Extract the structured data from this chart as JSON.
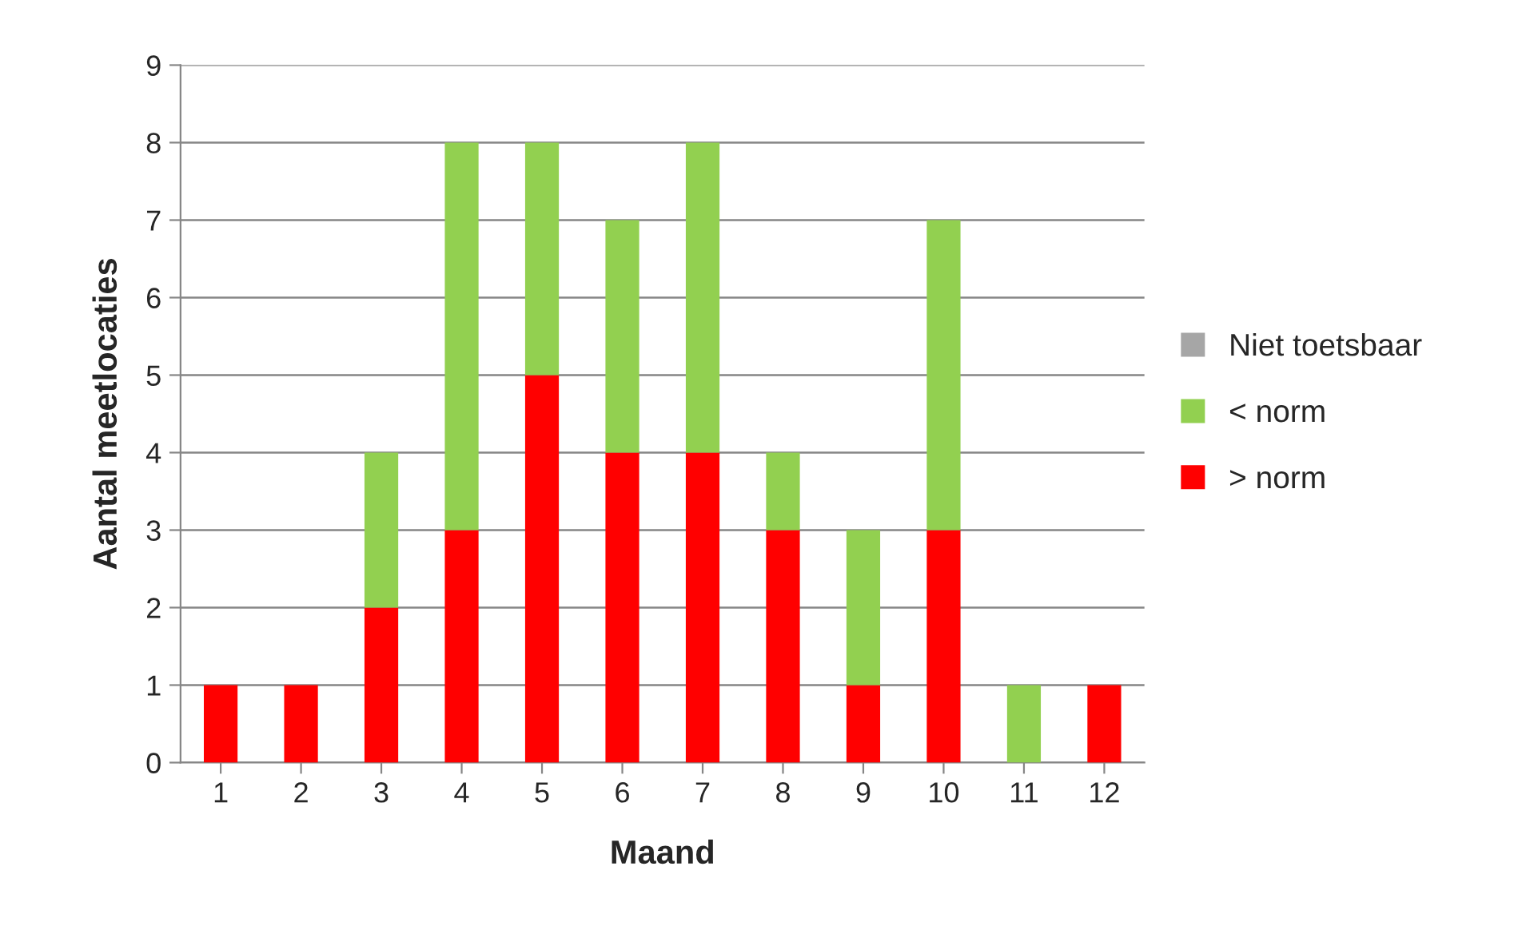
{
  "chart_data": {
    "type": "bar",
    "stacked": true,
    "xlabel": "Maand",
    "ylabel": "Aantal meetlocaties",
    "categories": [
      "1",
      "2",
      "3",
      "4",
      "5",
      "6",
      "7",
      "8",
      "9",
      "10",
      "11",
      "12"
    ],
    "series": [
      {
        "name": "> norm",
        "color": "#ff0000",
        "values": [
          1,
          1,
          2,
          3,
          5,
          4,
          4,
          3,
          1,
          3,
          0,
          1
        ]
      },
      {
        "name": "< norm",
        "color": "#92d050",
        "values": [
          0,
          0,
          2,
          5,
          3,
          3,
          4,
          1,
          2,
          4,
          1,
          0
        ]
      },
      {
        "name": "Niet toetsbaar",
        "color": "#a6a6a6",
        "values": [
          null,
          null,
          null,
          null,
          null,
          null,
          null,
          null,
          null,
          null,
          null,
          null
        ]
      }
    ],
    "ylim": [
      0,
      9
    ],
    "yticks": [
      0,
      1,
      2,
      3,
      4,
      5,
      6,
      7,
      8,
      9
    ],
    "grid": "y",
    "legend": "right"
  }
}
